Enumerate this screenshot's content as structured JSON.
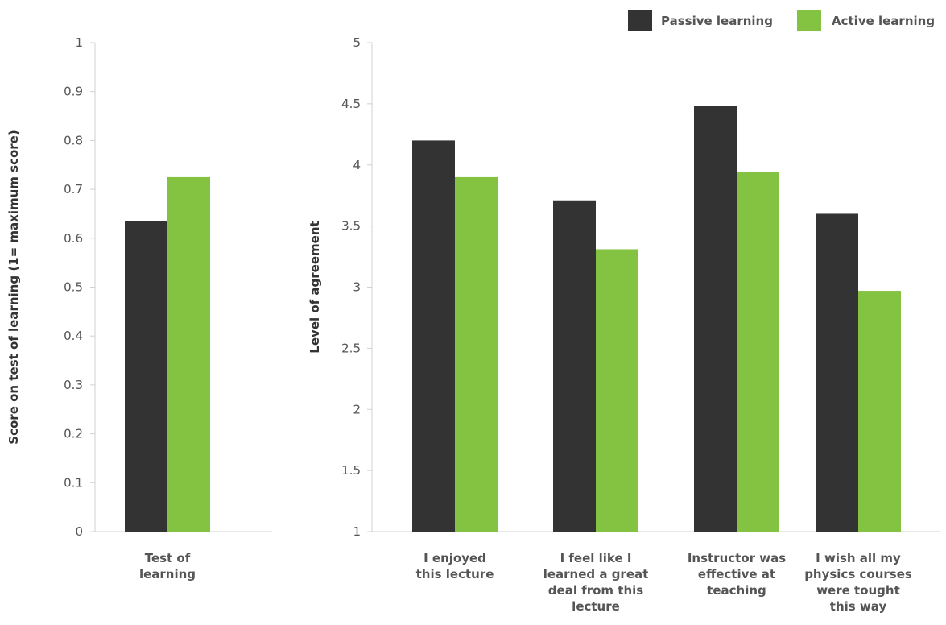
{
  "colors": {
    "passive": "#333333",
    "active": "#84c341"
  },
  "legend": [
    {
      "name": "Passive learning",
      "color": "#333333"
    },
    {
      "name": "Active learning",
      "color": "#84c341"
    }
  ],
  "chart_data": [
    {
      "type": "bar",
      "ylabel": "Score on test of learning (1= maximum score)",
      "ylim": [
        0,
        1
      ],
      "yticks": [
        "0",
        "0.1",
        "0.2",
        "0.3",
        "0.4",
        "0.5",
        "0.6",
        "0.7",
        "0.8",
        "0.9",
        "1"
      ],
      "categories": [
        [
          "Test of",
          "learning"
        ]
      ],
      "series": [
        {
          "name": "Passive learning",
          "values": [
            0.635
          ]
        },
        {
          "name": "Active learning",
          "values": [
            0.725
          ]
        }
      ]
    },
    {
      "type": "bar",
      "ylabel": "Level of agreement",
      "ylim": [
        1,
        5
      ],
      "yticks": [
        "1",
        "1.5",
        "2",
        "2.5",
        "3",
        "3.5",
        "4",
        "4.5",
        "5"
      ],
      "categories": [
        [
          "I enjoyed",
          "this lecture"
        ],
        [
          "I feel like I",
          "learned a great",
          "deal from this",
          "lecture"
        ],
        [
          "Instructor was",
          "effective at",
          "teaching"
        ],
        [
          "I wish all my",
          "physics courses",
          "were tought",
          "this way"
        ]
      ],
      "series": [
        {
          "name": "Passive learning",
          "values": [
            4.2,
            3.71,
            4.48,
            3.6
          ]
        },
        {
          "name": "Active learning",
          "values": [
            3.9,
            3.31,
            3.94,
            2.97
          ]
        }
      ]
    }
  ]
}
